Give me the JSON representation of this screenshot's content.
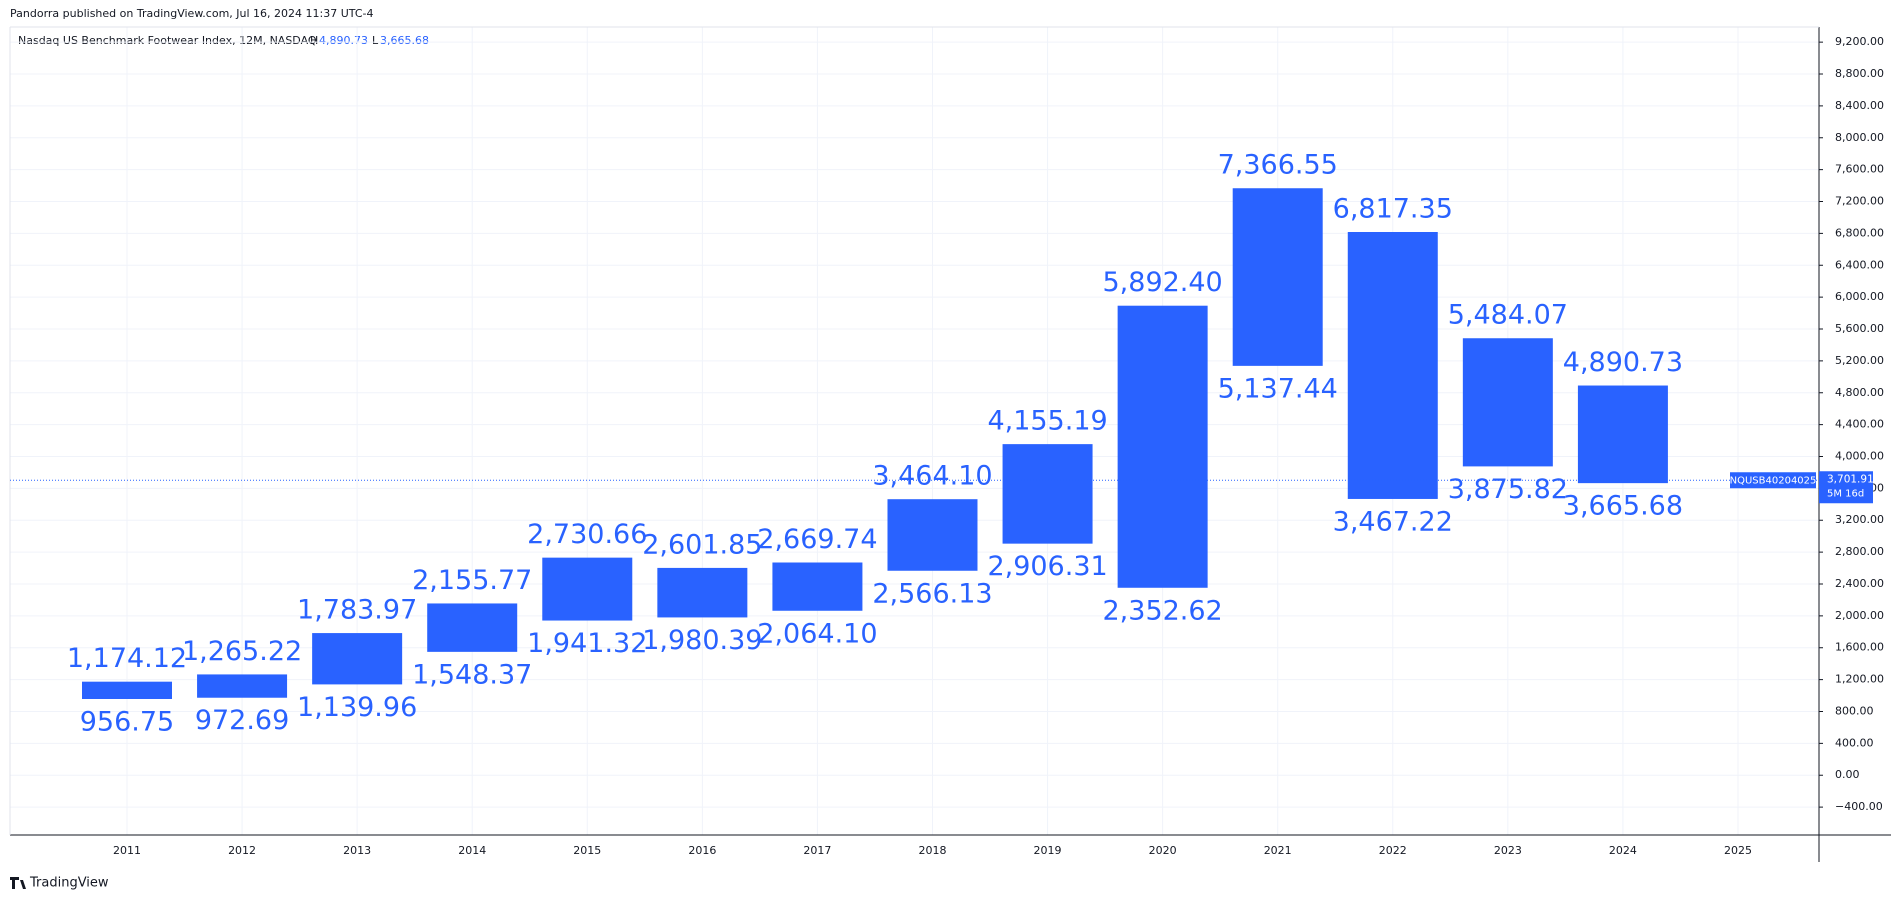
{
  "chart_data": {
    "type": "floating-bar",
    "publisher": "Pandorra published on TradingView.com, Jul 16, 2024 11:37 UTC-4",
    "title": "Nasdaq US Benchmark Footwear Index, 12M, NASDAQ",
    "high_prefix": "H",
    "high_text": "4,890.73",
    "low_prefix": "L",
    "low_text": "3,665.68",
    "footer": "TradingView",
    "color": "#2962ff",
    "categories": [
      "2011",
      "2012",
      "2013",
      "2014",
      "2015",
      "2016",
      "2017",
      "2018",
      "2019",
      "2020",
      "2021",
      "2022",
      "2023",
      "2024",
      "2025"
    ],
    "high": [
      1174.12,
      1265.22,
      1783.97,
      2155.77,
      2730.66,
      2601.85,
      2669.74,
      3464.1,
      4155.19,
      5892.4,
      7366.55,
      6817.35,
      5484.07,
      4890.73,
      null
    ],
    "high_labels": [
      "1,174.12",
      "1,265.22",
      "1,783.97",
      "2,155.77",
      "2,730.66",
      "2,601.85",
      "2,669.74",
      "3,464.10",
      "4,155.19",
      "5,892.40",
      "7,366.55",
      "6,817.35",
      "5,484.07",
      "4,890.73",
      null
    ],
    "low": [
      956.75,
      972.69,
      1139.96,
      1548.37,
      1941.32,
      1980.39,
      2064.1,
      2566.13,
      2906.31,
      2352.62,
      5137.44,
      3467.22,
      3875.82,
      3665.68,
      null
    ],
    "low_labels": [
      "956.75",
      "972.69",
      "1,139.96",
      "1,548.37",
      "1,941.32",
      "1,980.39",
      "2,064.10",
      "2,566.13",
      "2,906.31",
      "2,352.62",
      "5,137.44",
      "3,467.22",
      "3,875.82",
      "3,665.68",
      null
    ],
    "last_price": {
      "value": 3701.91,
      "label": "3,701.91"
    },
    "last_symbol": "NQUSB40204025",
    "last_countdown": "5M 16d",
    "ylim": [
      -750,
      9390
    ],
    "yticks": [
      {
        "value": -400,
        "label": "−400.00"
      },
      {
        "value": 0,
        "label": "0.00"
      },
      {
        "value": 400,
        "label": "400.00"
      },
      {
        "value": 800,
        "label": "800.00"
      },
      {
        "value": 1200,
        "label": "1,200.00"
      },
      {
        "value": 1600,
        "label": "1,600.00"
      },
      {
        "value": 2000,
        "label": "2,000.00"
      },
      {
        "value": 2400,
        "label": "2,400.00"
      },
      {
        "value": 2800,
        "label": "2,800.00"
      },
      {
        "value": 3200,
        "label": "3,200.00"
      },
      {
        "value": 3600,
        "label": "3,600.00"
      },
      {
        "value": 4000,
        "label": "4,000.00"
      },
      {
        "value": 4400,
        "label": "4,400.00"
      },
      {
        "value": 4800,
        "label": "4,800.00"
      },
      {
        "value": 5200,
        "label": "5,200.00"
      },
      {
        "value": 5600,
        "label": "5,600.00"
      },
      {
        "value": 6000,
        "label": "6,000.00"
      },
      {
        "value": 6400,
        "label": "6,400.00"
      },
      {
        "value": 6800,
        "label": "6,800.00"
      },
      {
        "value": 7200,
        "label": "7,200.00"
      },
      {
        "value": 7600,
        "label": "7,600.00"
      },
      {
        "value": 8000,
        "label": "8,000.00"
      },
      {
        "value": 8400,
        "label": "8,400.00"
      },
      {
        "value": 8800,
        "label": "8,800.00"
      },
      {
        "value": 9200,
        "label": "9,200.00"
      }
    ],
    "grid": true
  }
}
